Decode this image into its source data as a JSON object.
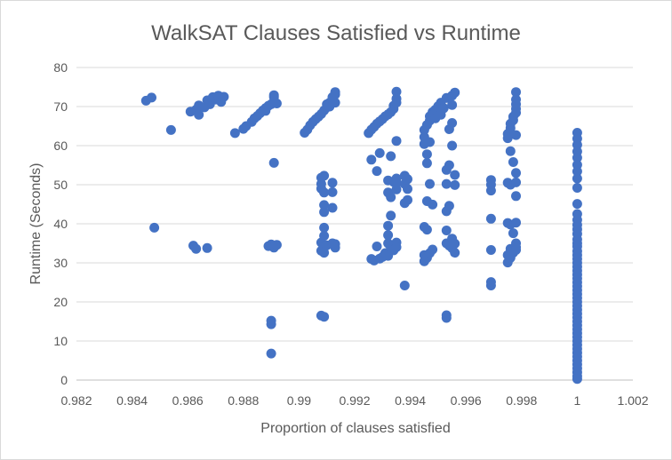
{
  "chart_data": {
    "type": "scatter",
    "title": "WalkSAT Clauses Satisfied vs Runtime",
    "xlabel": "Proportion of clauses satisfied",
    "ylabel": "Runtime (Seconds)",
    "xlim": [
      0.982,
      1.002
    ],
    "ylim": [
      0,
      80
    ],
    "x_ticks": [
      "0.982",
      "0.984",
      "0.986",
      "0.988",
      "0.99",
      "0.992",
      "0.994",
      "0.996",
      "0.998",
      "1",
      "1.002"
    ],
    "y_ticks": [
      "0",
      "10",
      "20",
      "30",
      "40",
      "50",
      "60",
      "70",
      "80"
    ],
    "grid": "horizontal",
    "legend": "none",
    "marker_color": "#4472C4",
    "series": [
      {
        "points": [
          [
            0.9845,
            71.5
          ],
          [
            0.9847,
            72.3
          ],
          [
            0.9848,
            39.0
          ],
          [
            0.9854,
            64.0
          ],
          [
            0.9861,
            68.7
          ],
          [
            0.9862,
            34.4
          ],
          [
            0.9863,
            33.6
          ],
          [
            0.9863,
            69.2
          ],
          [
            0.9864,
            67.9
          ],
          [
            0.9864,
            70.3
          ],
          [
            0.9866,
            69.8
          ],
          [
            0.9867,
            33.8
          ],
          [
            0.9867,
            71.6
          ],
          [
            0.9868,
            70.6
          ],
          [
            0.9869,
            72.4
          ],
          [
            0.987,
            71.8
          ],
          [
            0.9871,
            72.8
          ],
          [
            0.9872,
            71.2
          ],
          [
            0.9873,
            72.5
          ],
          [
            0.9877,
            63.2
          ],
          [
            0.988,
            64.3
          ],
          [
            0.9881,
            65.0
          ],
          [
            0.9883,
            66.1
          ],
          [
            0.9884,
            67.0
          ],
          [
            0.9885,
            67.6
          ],
          [
            0.9886,
            68.3
          ],
          [
            0.9887,
            69.0
          ],
          [
            0.9888,
            68.9
          ],
          [
            0.9888,
            69.6
          ],
          [
            0.9889,
            34.3
          ],
          [
            0.9889,
            70.2
          ],
          [
            0.989,
            15.2
          ],
          [
            0.989,
            14.3
          ],
          [
            0.989,
            6.8
          ],
          [
            0.989,
            70.6
          ],
          [
            0.989,
            34.7
          ],
          [
            0.9891,
            55.6
          ],
          [
            0.9891,
            71.2
          ],
          [
            0.9891,
            72.4
          ],
          [
            0.9891,
            72.9
          ],
          [
            0.9891,
            33.9
          ],
          [
            0.9892,
            70.8
          ],
          [
            0.9892,
            34.6
          ],
          [
            0.9902,
            63.3
          ],
          [
            0.9903,
            64.1
          ],
          [
            0.9904,
            65.2
          ],
          [
            0.9905,
            66.1
          ],
          [
            0.9906,
            66.8
          ],
          [
            0.9907,
            67.4
          ],
          [
            0.9908,
            68.1
          ],
          [
            0.9908,
            51.8
          ],
          [
            0.9908,
            50.2
          ],
          [
            0.9908,
            49.0
          ],
          [
            0.9908,
            35.2
          ],
          [
            0.9908,
            33.1
          ],
          [
            0.9908,
            16.5
          ],
          [
            0.9909,
            69.0
          ],
          [
            0.9909,
            52.3
          ],
          [
            0.9909,
            48.0
          ],
          [
            0.9909,
            44.8
          ],
          [
            0.9909,
            43.0
          ],
          [
            0.9909,
            39.0
          ],
          [
            0.9909,
            36.9
          ],
          [
            0.9909,
            34.1
          ],
          [
            0.9909,
            32.6
          ],
          [
            0.9909,
            16.2
          ],
          [
            0.991,
            69.8
          ],
          [
            0.991,
            70.6
          ],
          [
            0.991,
            34.5
          ],
          [
            0.9911,
            71.0
          ],
          [
            0.9911,
            70.0
          ],
          [
            0.9912,
            71.8
          ],
          [
            0.9912,
            72.4
          ],
          [
            0.9912,
            50.5
          ],
          [
            0.9912,
            48.1
          ],
          [
            0.9912,
            44.1
          ],
          [
            0.9912,
            35.0
          ],
          [
            0.9913,
            73.1
          ],
          [
            0.9913,
            71.0
          ],
          [
            0.9913,
            33.9
          ],
          [
            0.9913,
            34.8
          ],
          [
            0.9913,
            73.7
          ],
          [
            0.9925,
            63.2
          ],
          [
            0.9926,
            64.1
          ],
          [
            0.9926,
            56.4
          ],
          [
            0.9926,
            31.0
          ],
          [
            0.9927,
            64.8
          ],
          [
            0.9927,
            30.6
          ],
          [
            0.9928,
            65.6
          ],
          [
            0.9928,
            53.5
          ],
          [
            0.9928,
            34.2
          ],
          [
            0.9929,
            66.2
          ],
          [
            0.9929,
            58.1
          ],
          [
            0.9929,
            31.1
          ],
          [
            0.993,
            66.8
          ],
          [
            0.993,
            31.5
          ],
          [
            0.9931,
            67.5
          ],
          [
            0.9931,
            32.5
          ],
          [
            0.9932,
            68.0
          ],
          [
            0.9932,
            51.1
          ],
          [
            0.9932,
            48.0
          ],
          [
            0.9932,
            39.5
          ],
          [
            0.9932,
            37.1
          ],
          [
            0.9932,
            35.0
          ],
          [
            0.9932,
            31.8
          ],
          [
            0.9933,
            68.6
          ],
          [
            0.9933,
            57.3
          ],
          [
            0.9933,
            46.8
          ],
          [
            0.9933,
            42.1
          ],
          [
            0.9933,
            33.9
          ],
          [
            0.9934,
            69.4
          ],
          [
            0.9934,
            70.2
          ],
          [
            0.9934,
            50.7
          ],
          [
            0.9934,
            33.2
          ],
          [
            0.9935,
            71.0
          ],
          [
            0.9935,
            72.0
          ],
          [
            0.9935,
            61.2
          ],
          [
            0.9935,
            51.6
          ],
          [
            0.9935,
            50.4
          ],
          [
            0.9935,
            48.8
          ],
          [
            0.9935,
            35.2
          ],
          [
            0.9935,
            34.0
          ],
          [
            0.9935,
            73.8
          ],
          [
            0.9938,
            52.3
          ],
          [
            0.9938,
            50.2
          ],
          [
            0.9938,
            45.3
          ],
          [
            0.9938,
            24.2
          ],
          [
            0.9939,
            51.4
          ],
          [
            0.9939,
            48.9
          ],
          [
            0.9939,
            46.1
          ],
          [
            0.9945,
            64.0
          ],
          [
            0.9945,
            62.2
          ],
          [
            0.9945,
            60.4
          ],
          [
            0.9945,
            39.2
          ],
          [
            0.9945,
            32.0
          ],
          [
            0.9945,
            30.4
          ],
          [
            0.9946,
            65.3
          ],
          [
            0.9946,
            57.8
          ],
          [
            0.9946,
            55.5
          ],
          [
            0.9946,
            45.8
          ],
          [
            0.9946,
            38.5
          ],
          [
            0.9946,
            31.3
          ],
          [
            0.9947,
            66.4
          ],
          [
            0.9947,
            67.5
          ],
          [
            0.9947,
            60.9
          ],
          [
            0.9947,
            50.2
          ],
          [
            0.9947,
            32.5
          ],
          [
            0.9948,
            68.6
          ],
          [
            0.9948,
            44.9
          ],
          [
            0.9948,
            33.4
          ],
          [
            0.9949,
            69.2
          ],
          [
            0.9949,
            67.0
          ],
          [
            0.995,
            70.1
          ],
          [
            0.9951,
            71.0
          ],
          [
            0.9951,
            67.9
          ],
          [
            0.9952,
            69.6
          ],
          [
            0.9953,
            72.2
          ],
          [
            0.9953,
            53.8
          ],
          [
            0.9953,
            50.2
          ],
          [
            0.9953,
            43.2
          ],
          [
            0.9953,
            38.3
          ],
          [
            0.9953,
            35.0
          ],
          [
            0.9953,
            16.6
          ],
          [
            0.9953,
            15.9
          ],
          [
            0.9954,
            64.2
          ],
          [
            0.9954,
            55.0
          ],
          [
            0.9954,
            44.6
          ],
          [
            0.9954,
            34.4
          ],
          [
            0.9955,
            72.8
          ],
          [
            0.9955,
            70.4
          ],
          [
            0.9955,
            60.0
          ],
          [
            0.9955,
            65.8
          ],
          [
            0.9955,
            36.2
          ],
          [
            0.9955,
            33.8
          ],
          [
            0.9956,
            73.6
          ],
          [
            0.9956,
            52.5
          ],
          [
            0.9956,
            49.9
          ],
          [
            0.9956,
            34.9
          ],
          [
            0.9956,
            32.6
          ],
          [
            0.9969,
            51.2
          ],
          [
            0.9969,
            50.0
          ],
          [
            0.9969,
            48.5
          ],
          [
            0.9969,
            41.3
          ],
          [
            0.9969,
            33.3
          ],
          [
            0.9969,
            25.1
          ],
          [
            0.9969,
            24.2
          ],
          [
            0.9975,
            63.0
          ],
          [
            0.9975,
            61.9
          ],
          [
            0.9975,
            50.5
          ],
          [
            0.9975,
            40.2
          ],
          [
            0.9975,
            32.0
          ],
          [
            0.9975,
            30.1
          ],
          [
            0.9976,
            64.5
          ],
          [
            0.9976,
            65.6
          ],
          [
            0.9976,
            58.6
          ],
          [
            0.9976,
            50.0
          ],
          [
            0.9976,
            39.8
          ],
          [
            0.9976,
            33.6
          ],
          [
            0.9976,
            31.3
          ],
          [
            0.9977,
            66.5
          ],
          [
            0.9977,
            67.4
          ],
          [
            0.9977,
            55.8
          ],
          [
            0.9977,
            37.6
          ],
          [
            0.9977,
            32.6
          ],
          [
            0.9978,
            68.4
          ],
          [
            0.9978,
            69.4
          ],
          [
            0.9978,
            62.7
          ],
          [
            0.9978,
            53.0
          ],
          [
            0.9978,
            50.6
          ],
          [
            0.9978,
            47.1
          ],
          [
            0.9978,
            40.3
          ],
          [
            0.9978,
            35.0
          ],
          [
            0.9978,
            34.0
          ],
          [
            0.9978,
            33.3
          ],
          [
            0.9978,
            70.6
          ],
          [
            0.9978,
            71.8
          ],
          [
            0.9978,
            73.7
          ],
          [
            1,
            63.3
          ],
          [
            1,
            61.8
          ],
          [
            1,
            60.2
          ],
          [
            1,
            58.5
          ],
          [
            1,
            56.9
          ],
          [
            1,
            55.1
          ],
          [
            1,
            53.4
          ],
          [
            1,
            51.6
          ],
          [
            1,
            49.2
          ],
          [
            1,
            45.1
          ],
          [
            1,
            42.5
          ],
          [
            1,
            41.0
          ],
          [
            1,
            39.7
          ],
          [
            1,
            38.6
          ],
          [
            1,
            37.4
          ],
          [
            1,
            36.0
          ],
          [
            1,
            35.0
          ],
          [
            1,
            34.2
          ],
          [
            1,
            33.0
          ],
          [
            1,
            32.0
          ],
          [
            1,
            31.0
          ],
          [
            1,
            30.0
          ],
          [
            1,
            29.0
          ],
          [
            1,
            28.0
          ],
          [
            1,
            27.0
          ],
          [
            1,
            26.0
          ],
          [
            1,
            25.0
          ],
          [
            1,
            24.0
          ],
          [
            1,
            23.0
          ],
          [
            1,
            22.0
          ],
          [
            1,
            21.0
          ],
          [
            1,
            20.0
          ],
          [
            1,
            19.0
          ],
          [
            1,
            18.0
          ],
          [
            1,
            17.0
          ],
          [
            1,
            16.0
          ],
          [
            1,
            15.0
          ],
          [
            1,
            14.0
          ],
          [
            1,
            13.0
          ],
          [
            1,
            12.0
          ],
          [
            1,
            11.0
          ],
          [
            1,
            10.0
          ],
          [
            1,
            9.0
          ],
          [
            1,
            8.0
          ],
          [
            1,
            7.0
          ],
          [
            1,
            6.0
          ],
          [
            1,
            5.0
          ],
          [
            1,
            4.0
          ],
          [
            1,
            3.0
          ],
          [
            1,
            2.0
          ],
          [
            1,
            1.0
          ],
          [
            1,
            0.3
          ]
        ]
      }
    ]
  }
}
